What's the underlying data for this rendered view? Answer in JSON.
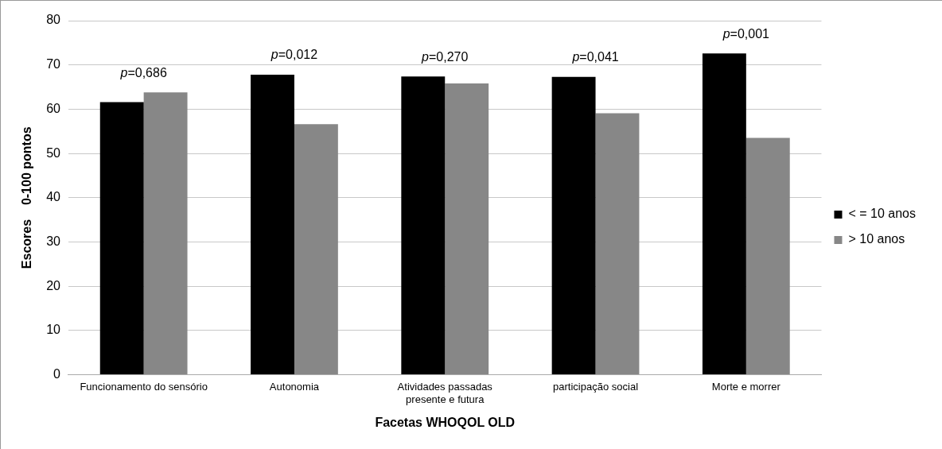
{
  "chart_data": {
    "type": "bar",
    "xlabel": "Facetas WHOQOL OLD",
    "ylabel": "Escores    0-100 pontos",
    "categories": [
      "Funcionamento do sensório",
      "Autonomia",
      "Atividades passadas presente e futura",
      "participação social",
      "Morte e morrer"
    ],
    "series": [
      {
        "name": "< = 10 anos",
        "color": "#000000",
        "values": [
          61.6,
          67.8,
          67.4,
          67.3,
          72.6
        ]
      },
      {
        "name": "> 10 anos",
        "color": "#878787",
        "values": [
          63.8,
          56.6,
          65.8,
          59.1,
          53.5
        ]
      }
    ],
    "ylim": [
      0,
      80
    ],
    "yticks": [
      0,
      10,
      20,
      30,
      40,
      50,
      60,
      70,
      80
    ],
    "grid": "y",
    "legend": "right",
    "annotations": [
      "p=0,686",
      "p=0,012",
      "p=0,270",
      "p=0,041",
      "p=0,001"
    ]
  }
}
